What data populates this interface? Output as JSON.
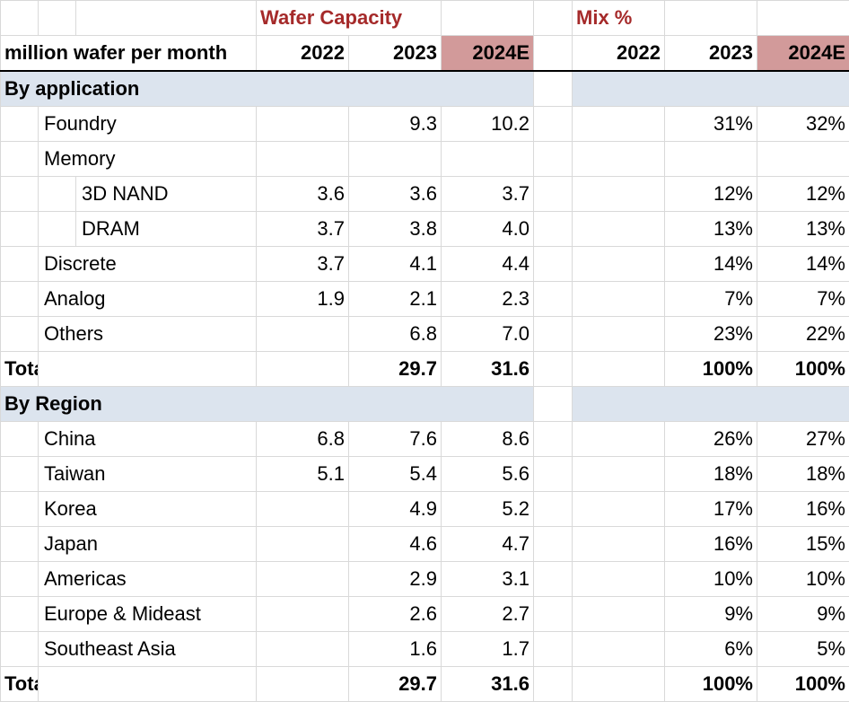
{
  "titles": {
    "capacity": "Wafer Capacity",
    "mix": "Mix %"
  },
  "header": {
    "unit": "million wafer per month",
    "cap_years": [
      "2022",
      "2023",
      "2024E"
    ],
    "mix_years": [
      "2022",
      "2023",
      "2024E"
    ]
  },
  "colors": {
    "title": "#a52a2a",
    "highlight": "#d29a9a",
    "section": "#dce4ee"
  },
  "rows": [
    {
      "type": "section",
      "label": "By application"
    },
    {
      "type": "data",
      "indent": 1,
      "label": "Foundry",
      "cap": [
        "",
        "9.3",
        "10.2"
      ],
      "mix": [
        "",
        "31%",
        "32%"
      ]
    },
    {
      "type": "data",
      "indent": 1,
      "label": "Memory",
      "cap": [
        "",
        "",
        ""
      ],
      "mix": [
        "",
        "",
        ""
      ]
    },
    {
      "type": "data",
      "indent": 2,
      "label": "3D NAND",
      "cap": [
        "3.6",
        "3.6",
        "3.7"
      ],
      "mix": [
        "",
        "12%",
        "12%"
      ]
    },
    {
      "type": "data",
      "indent": 2,
      "label": "DRAM",
      "cap": [
        "3.7",
        "3.8",
        "4.0"
      ],
      "mix": [
        "",
        "13%",
        "13%"
      ]
    },
    {
      "type": "data",
      "indent": 1,
      "label": "Discrete",
      "cap": [
        "3.7",
        "4.1",
        "4.4"
      ],
      "mix": [
        "",
        "14%",
        "14%"
      ]
    },
    {
      "type": "data",
      "indent": 1,
      "label": "Analog",
      "cap": [
        "1.9",
        "2.1",
        "2.3"
      ],
      "mix": [
        "",
        "7%",
        "7%"
      ]
    },
    {
      "type": "data",
      "indent": 1,
      "label": "Others",
      "cap": [
        "",
        "6.8",
        "7.0"
      ],
      "mix": [
        "",
        "23%",
        "22%"
      ]
    },
    {
      "type": "total",
      "label": "Total",
      "cap": [
        "",
        "29.7",
        "31.6"
      ],
      "mix": [
        "",
        "100%",
        "100%"
      ]
    },
    {
      "type": "section",
      "label": "By Region"
    },
    {
      "type": "data",
      "indent": 1,
      "label": "China",
      "cap": [
        "6.8",
        "7.6",
        "8.6"
      ],
      "mix": [
        "",
        "26%",
        "27%"
      ]
    },
    {
      "type": "data",
      "indent": 1,
      "label": "Taiwan",
      "cap": [
        "5.1",
        "5.4",
        "5.6"
      ],
      "mix": [
        "",
        "18%",
        "18%"
      ]
    },
    {
      "type": "data",
      "indent": 1,
      "label": "Korea",
      "cap": [
        "",
        "4.9",
        "5.2"
      ],
      "mix": [
        "",
        "17%",
        "16%"
      ]
    },
    {
      "type": "data",
      "indent": 1,
      "label": "Japan",
      "cap": [
        "",
        "4.6",
        "4.7"
      ],
      "mix": [
        "",
        "16%",
        "15%"
      ]
    },
    {
      "type": "data",
      "indent": 1,
      "label": "Americas",
      "cap": [
        "",
        "2.9",
        "3.1"
      ],
      "mix": [
        "",
        "10%",
        "10%"
      ]
    },
    {
      "type": "data",
      "indent": 1,
      "label": "Europe & Mideast",
      "cap": [
        "",
        "2.6",
        "2.7"
      ],
      "mix": [
        "",
        "9%",
        "9%"
      ]
    },
    {
      "type": "data",
      "indent": 1,
      "label": "Southeast Asia",
      "cap": [
        "",
        "1.6",
        "1.7"
      ],
      "mix": [
        "",
        "6%",
        "5%"
      ]
    },
    {
      "type": "total",
      "label": "Total",
      "cap": [
        "",
        "29.7",
        "31.6"
      ],
      "mix": [
        "",
        "100%",
        "100%"
      ]
    }
  ]
}
